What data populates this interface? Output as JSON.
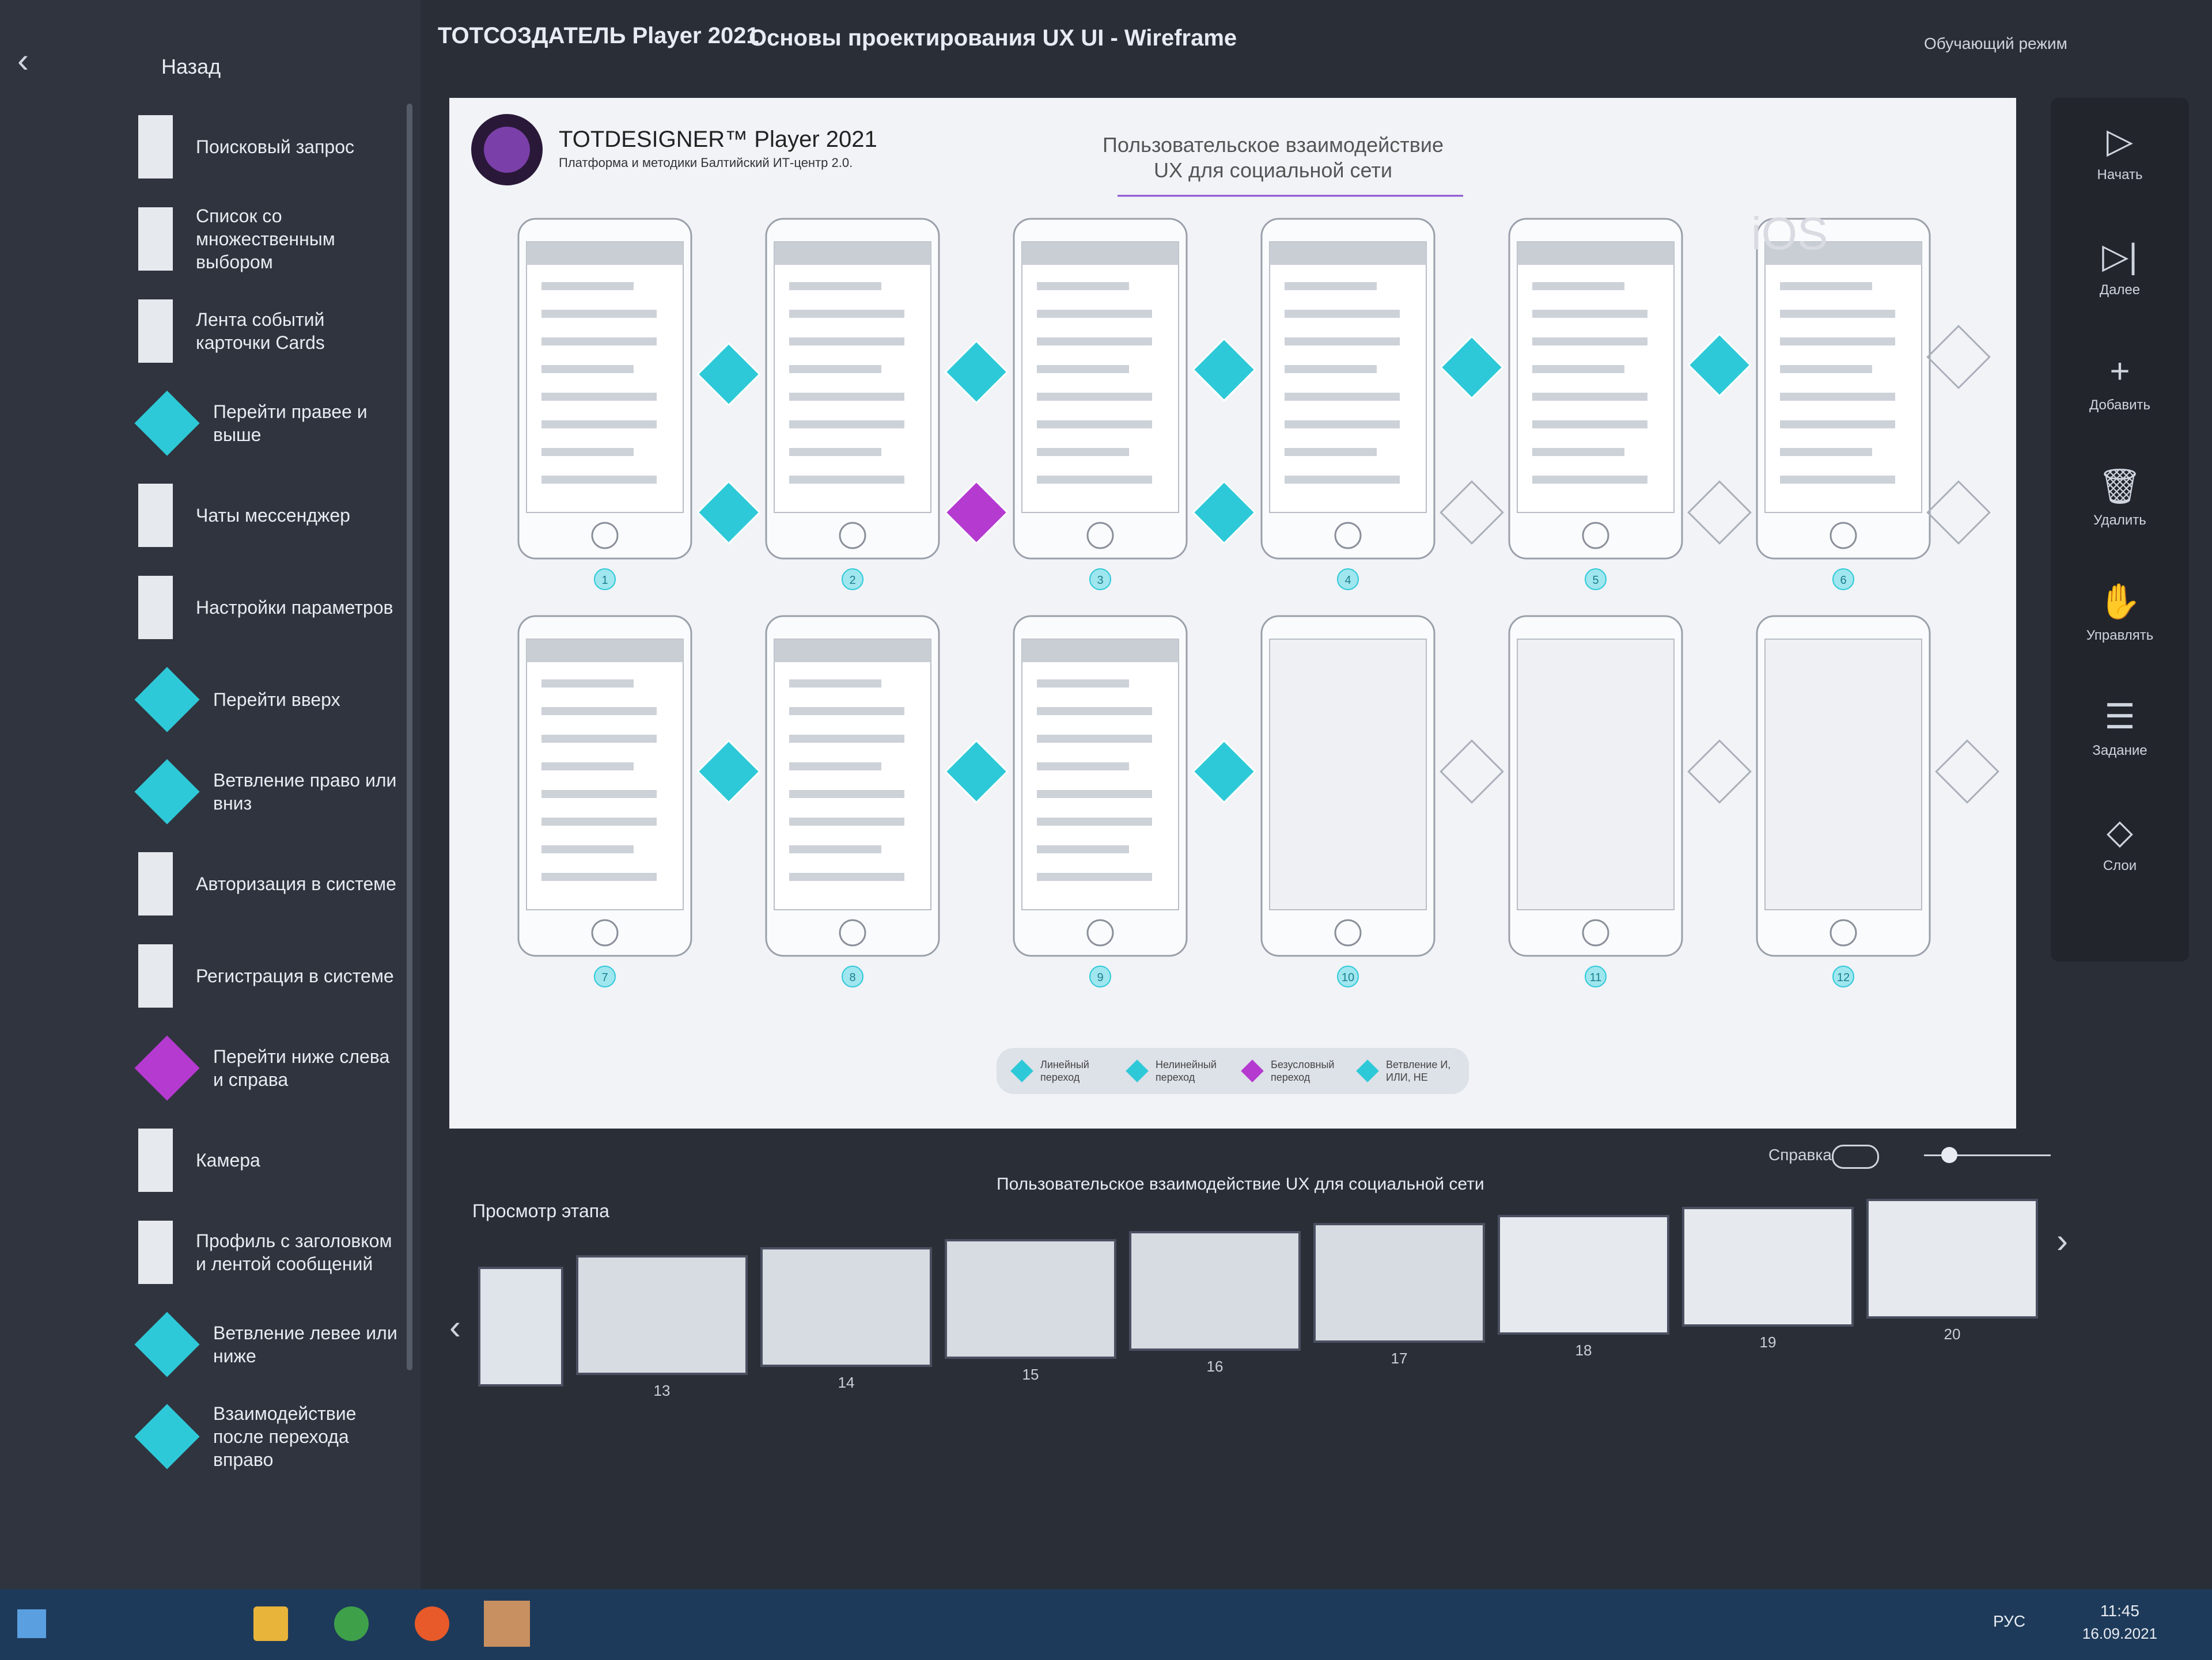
{
  "app": {
    "title": "ТОТСОЗДАТЕЛЬ Player 2021",
    "course": "Основы проектирования UX UI - Wireframe"
  },
  "sidebar": {
    "back": "Назад",
    "items": [
      "Поисковый запрос",
      "Список со множественным выбором",
      "Лента событий карточки Cards",
      "Перейти правее и выше",
      "Чаты мессенджер",
      "Настройки параметров",
      "Перейти вверх",
      "Ветвление право или вниз",
      "Авторизация в системе",
      "Регистрация в системе",
      "Перейти ниже слева и справа",
      "Камера",
      "Профиль с заголовком и лентой сообщений",
      "Ветвление левее или ниже",
      "Взаимодействие после перехода вправо"
    ]
  },
  "canvas": {
    "brand": "TOTDESIGNER™ Player 2021",
    "brand_subtitle": "Платформа и методики Балтийский ИТ-центр 2.0.",
    "heading": "Пользовательское взаимодействие UX для социальной сети",
    "platform": "iOS",
    "mode": "Обучающий режим",
    "screens": [
      "1",
      "2",
      "3",
      "4",
      "5",
      "6",
      "7",
      "8",
      "9",
      "10",
      "11",
      "12"
    ],
    "legend": [
      "Линейный переход",
      "Нелинейный переход",
      "Безусловный переход",
      "Ветвление И, ИЛИ, НЕ"
    ]
  },
  "toolbar": [
    "Начать",
    "Далее",
    "Добавить",
    "Удалить",
    "Управлять",
    "Задание",
    "Слои"
  ],
  "controls": {
    "help": "Справка"
  },
  "stage": {
    "caption": "Пользовательское взаимодействие UX для социальной сети",
    "label": "Просмотр этапа",
    "thumbnails": [
      "13",
      "14",
      "15",
      "16",
      "17",
      "18",
      "19",
      "20"
    ]
  },
  "taskbar": {
    "language": "РУС",
    "time": "11:45",
    "date": "16.09.2021"
  }
}
